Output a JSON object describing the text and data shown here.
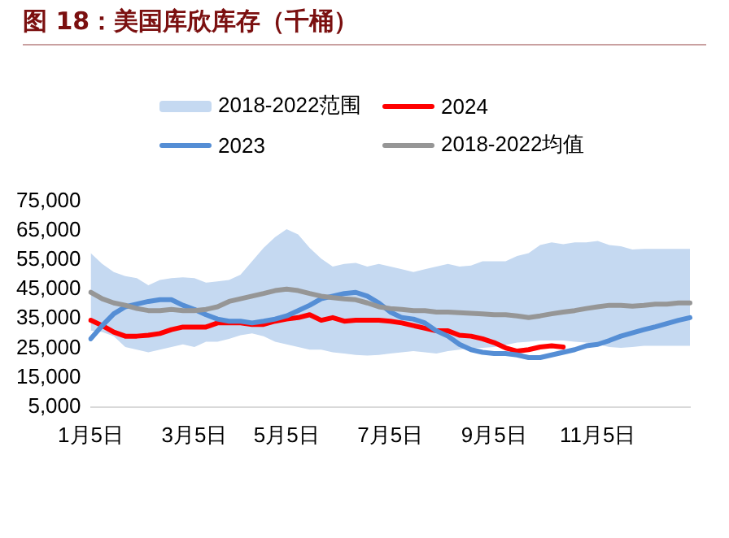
{
  "chart_data": {
    "type": "line",
    "title": "图 18：美国库欣库存（千桶）",
    "categories": [
      "1月5日",
      null,
      null,
      null,
      null,
      null,
      null,
      null,
      null,
      "3月5日",
      null,
      null,
      null,
      null,
      null,
      null,
      null,
      "5月5日",
      null,
      null,
      null,
      null,
      null,
      null,
      null,
      null,
      "7月5日",
      null,
      null,
      null,
      null,
      null,
      null,
      null,
      null,
      "9月5日",
      null,
      null,
      null,
      null,
      null,
      null,
      null,
      null,
      "11月5日",
      null,
      null,
      null,
      null,
      null,
      null,
      null,
      null
    ],
    "ylim": [
      5000,
      75000
    ],
    "yticks": [
      {
        "value": 5000,
        "label": "5,000"
      },
      {
        "value": 15000,
        "label": "15,000"
      },
      {
        "value": 25000,
        "label": "25,000"
      },
      {
        "value": 35000,
        "label": "35,000"
      },
      {
        "value": 45000,
        "label": "45,000"
      },
      {
        "value": 55000,
        "label": "55,000"
      },
      {
        "value": 65000,
        "label": "65,000"
      },
      {
        "value": 75000,
        "label": "75,000"
      }
    ],
    "grid": false,
    "legend": "top",
    "marker": "none",
    "line_style": "solid",
    "annotations": [
      "2018-2022范围"
    ],
    "series": [
      {
        "name": "2024",
        "color": "#ff0000",
        "values": [
          34500,
          32700,
          30500,
          29100,
          29100,
          29400,
          30000,
          31300,
          32200,
          32200,
          32200,
          33600,
          33600,
          33600,
          33100,
          33100,
          34200,
          34900,
          35400,
          36400,
          34500,
          35400,
          34200,
          34500,
          34500,
          34500,
          34200,
          33600,
          32700,
          31800,
          30900,
          30900,
          29400,
          29100,
          28200,
          26900,
          25100,
          24000,
          24500,
          25400,
          25800,
          25400,
          null,
          null,
          null,
          null,
          null,
          null,
          null,
          null,
          null,
          null,
          null
        ]
      },
      {
        "name": "2023",
        "color": "#558ed5",
        "values": [
          28200,
          32700,
          36700,
          39100,
          40000,
          40900,
          41500,
          41500,
          39600,
          38200,
          36400,
          34900,
          34200,
          34200,
          33600,
          34200,
          34900,
          36000,
          37800,
          39600,
          41800,
          42700,
          43600,
          44000,
          42700,
          40400,
          37300,
          35400,
          34900,
          33600,
          30900,
          29100,
          26300,
          24500,
          23600,
          23200,
          23200,
          22700,
          21800,
          21800,
          22700,
          23600,
          24500,
          25800,
          26300,
          27600,
          29100,
          30200,
          31300,
          32300,
          33400,
          34500,
          35400
        ]
      },
      {
        "name": "2018-2022均值",
        "color": "#969696",
        "values": [
          44000,
          41800,
          40400,
          39600,
          38500,
          37800,
          37800,
          38200,
          37800,
          37800,
          38200,
          39100,
          40900,
          41800,
          42700,
          43600,
          44600,
          45100,
          44600,
          43600,
          42700,
          42200,
          41800,
          41500,
          40400,
          39100,
          38500,
          38200,
          37800,
          37800,
          37300,
          37300,
          37100,
          36900,
          36700,
          36400,
          36400,
          36000,
          35400,
          36000,
          36700,
          37300,
          37800,
          38500,
          39100,
          39600,
          39600,
          39300,
          39600,
          40000,
          40000,
          40400,
          40400
        ],
        "lower": [
          31000,
          30500,
          29100,
          25400,
          24500,
          23600,
          24500,
          25400,
          26300,
          25400,
          27200,
          27200,
          28200,
          29400,
          30000,
          29100,
          27200,
          26300,
          25400,
          24500,
          24500,
          23600,
          23200,
          22700,
          22500,
          22700,
          23200,
          23600,
          24000,
          23600,
          23200,
          24000,
          24500,
          25100,
          25100,
          25400,
          26100,
          26900,
          27200,
          27600,
          27600,
          27600,
          27200,
          26900,
          26300,
          25400,
          25100,
          25400,
          25800,
          25800,
          25800,
          25800,
          25800
        ],
        "upper": [
          57300,
          53700,
          50900,
          49500,
          48800,
          46400,
          48200,
          48800,
          49100,
          48800,
          47300,
          47700,
          48200,
          50000,
          54600,
          59100,
          62800,
          65500,
          63700,
          59100,
          55500,
          52800,
          53700,
          54000,
          52800,
          53700,
          52800,
          51900,
          50900,
          51900,
          52800,
          53700,
          52800,
          53100,
          54600,
          54600,
          54600,
          56400,
          57300,
          60100,
          61000,
          60400,
          61000,
          61000,
          61500,
          60100,
          59700,
          58600,
          58800,
          58800,
          58800,
          58800,
          58800
        ]
      }
    ]
  }
}
